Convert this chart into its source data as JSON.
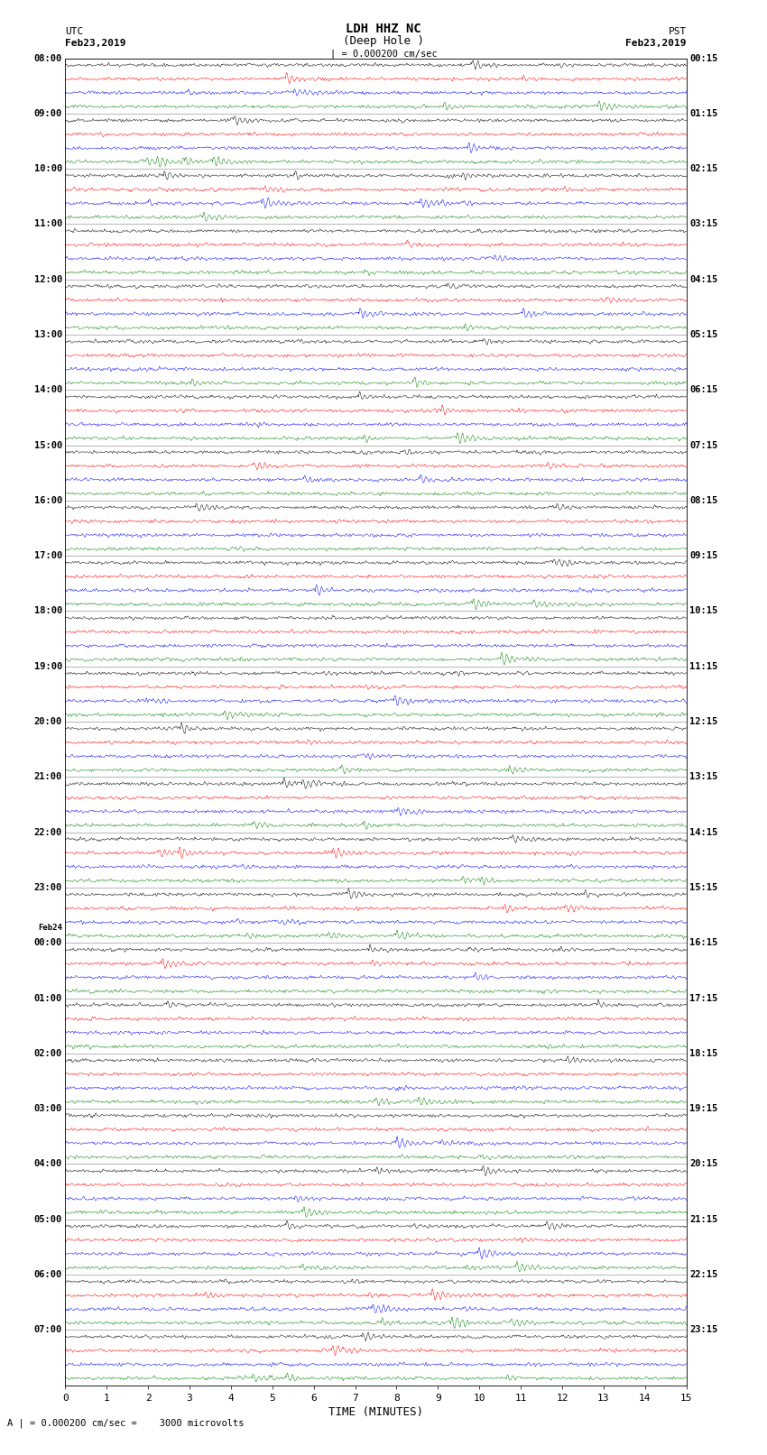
{
  "title_line1": "LDH HHZ NC",
  "title_line2": "(Deep Hole )",
  "scale_bar": "| = 0.000200 cm/sec",
  "scale_annotation": "A | = 0.000200 cm/sec =    3000 microvolts",
  "utc_label": "UTC",
  "pst_label": "PST",
  "date_left": "Feb23,2019",
  "date_right": "Feb23,2019",
  "xlabel": "TIME (MINUTES)",
  "xmin": 0,
  "xmax": 15,
  "fig_width": 8.5,
  "fig_height": 16.13,
  "dpi": 100,
  "background_color": "white",
  "trace_colors": [
    "black",
    "red",
    "blue",
    "green"
  ],
  "left_times": [
    "08:00",
    "09:00",
    "10:00",
    "11:00",
    "12:00",
    "13:00",
    "14:00",
    "15:00",
    "16:00",
    "17:00",
    "18:00",
    "19:00",
    "20:00",
    "21:00",
    "22:00",
    "23:00",
    "Feb24\n00:00",
    "01:00",
    "02:00",
    "03:00",
    "04:00",
    "05:00",
    "06:00",
    "07:00"
  ],
  "right_times": [
    "00:15",
    "01:15",
    "02:15",
    "03:15",
    "04:15",
    "05:15",
    "06:15",
    "07:15",
    "08:15",
    "09:15",
    "10:15",
    "11:15",
    "12:15",
    "13:15",
    "14:15",
    "15:15",
    "16:15",
    "17:15",
    "18:15",
    "19:15",
    "20:15",
    "21:15",
    "22:15",
    "23:15"
  ],
  "n_rows": 24,
  "traces_per_row": 4,
  "noise_amplitude": 0.035,
  "noise_seed": 42
}
